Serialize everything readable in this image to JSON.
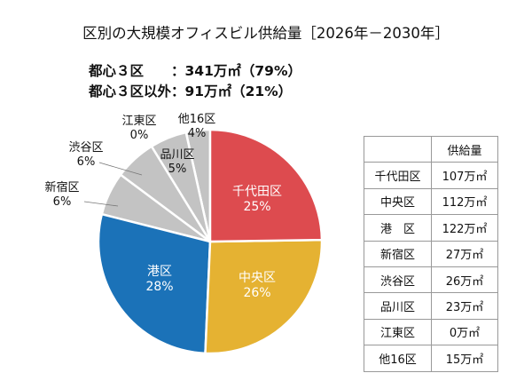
{
  "title": "区別の大規模オフィスビル供給量［2026年－2030年］",
  "summary": [
    {
      "label": "都心３区　　",
      "value": "：341万㎡（79%）"
    },
    {
      "label": "都心３区以外",
      "value": "：91万㎡（21%）"
    }
  ],
  "chart_data": {
    "type": "pie",
    "title": "区別の大規模オフィスビル供給量［2026年－2030年］",
    "unit": "万㎡",
    "slices": [
      {
        "name": "千代田区",
        "value": 107,
        "pct": "25%",
        "color": "#dd4b4f"
      },
      {
        "name": "中央区",
        "value": 112,
        "pct": "26%",
        "color": "#e5b232"
      },
      {
        "name": "港区",
        "value": 122,
        "pct": "28%",
        "color": "#1b72b8"
      },
      {
        "name": "新宿区",
        "value": 27,
        "pct": "6%",
        "color": "#c3c3c3"
      },
      {
        "name": "渋谷区",
        "value": 26,
        "pct": "6%",
        "color": "#c3c3c3"
      },
      {
        "name": "品川区",
        "value": 23,
        "pct": "5%",
        "color": "#c3c3c3"
      },
      {
        "name": "江東区",
        "value": 0,
        "pct": "0%",
        "color": "#c3c3c3"
      },
      {
        "name": "他16区",
        "value": 15,
        "pct": "4%",
        "color": "#c3c3c3"
      }
    ]
  },
  "table": {
    "header": [
      "",
      "供給量"
    ],
    "rows": [
      [
        "千代田区",
        "107万㎡"
      ],
      [
        "中央区",
        "112万㎡"
      ],
      [
        "港　区",
        "122万㎡"
      ],
      [
        "新宿区",
        "27万㎡"
      ],
      [
        "渋谷区",
        "26万㎡"
      ],
      [
        "品川区",
        "23万㎡"
      ],
      [
        "江東区",
        "0万㎡"
      ],
      [
        "他16区",
        "15万㎡"
      ]
    ]
  }
}
